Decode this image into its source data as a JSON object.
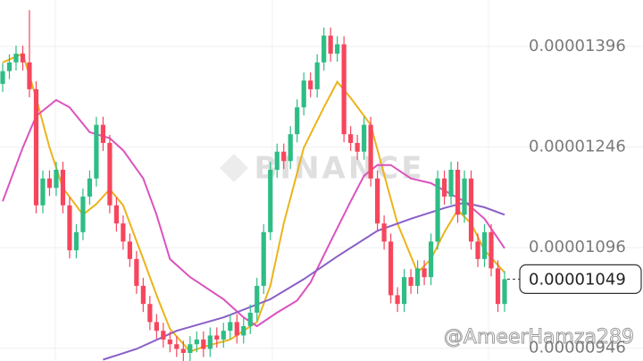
{
  "chart_data": {
    "type": "candlestick",
    "watermark": "BINANCE",
    "credit": "@AmeerHamza289",
    "up_color": "#2ebd85",
    "down_color": "#f6465d",
    "open": [
      1.34e-05,
      1.359e-05,
      1.372e-05,
      1.385e-05,
      1.372e-05,
      1.332e-05,
      1.159e-05,
      1.199e-05,
      1.185e-05,
      1.212e-05,
      1.159e-05,
      1.092e-05,
      1.119e-05,
      1.172e-05,
      1.199e-05,
      1.279e-05,
      1.252e-05,
      1.159e-05,
      1.132e-05,
      1.105e-05,
      1.079e-05,
      1.039e-05,
      1.012e-05,
      9.85e-06,
      9.72e-06,
      9.59e-06,
      9.52e-06,
      9.45e-06,
      9.39e-06,
      9.52e-06,
      9.59e-06,
      9.45e-06,
      9.65e-06,
      9.59e-06,
      9.72e-06,
      9.85e-06,
      9.65e-06,
      9.79e-06,
      9.99e-06,
      1.039e-05,
      1.119e-05,
      1.212e-05,
      1.239e-05,
      1.225e-05,
      1.265e-05,
      1.305e-05,
      1.345e-05,
      1.332e-05,
      1.372e-05,
      1.412e-05,
      1.385e-05,
      1.399e-05,
      1.265e-05,
      1.252e-05,
      1.239e-05,
      1.279e-05,
      1.199e-05,
      1.132e-05,
      1.105e-05,
      1.025e-05,
      1.012e-05,
      1.052e-05,
      1.039e-05,
      1.065e-05,
      1.052e-05,
      1.105e-05,
      1.199e-05,
      1.172e-05,
      1.212e-05,
      1.145e-05,
      1.199e-05,
      1.105e-05,
      1.079e-05,
      1.119e-05,
      1.065e-05,
      1.012e-05
    ],
    "high": [
      1.371e-05,
      1.384e-05,
      1.397e-05,
      1.397e-05,
      1.45e-05,
      1.344e-05,
      1.211e-05,
      1.211e-05,
      1.224e-05,
      1.224e-05,
      1.171e-05,
      1.131e-05,
      1.184e-05,
      1.211e-05,
      1.291e-05,
      1.291e-05,
      1.264e-05,
      1.171e-05,
      1.144e-05,
      1.117e-05,
      1.091e-05,
      1.051e-05,
      1.024e-05,
      9.97e-06,
      9.84e-06,
      9.71e-06,
      9.64e-06,
      9.57e-06,
      9.64e-06,
      9.71e-06,
      9.71e-06,
      9.77e-06,
      9.77e-06,
      9.84e-06,
      9.97e-06,
      9.97e-06,
      9.91e-06,
      1.011e-05,
      1.051e-05,
      1.131e-05,
      1.224e-05,
      1.251e-05,
      1.251e-05,
      1.277e-05,
      1.317e-05,
      1.357e-05,
      1.357e-05,
      1.384e-05,
      1.424e-05,
      1.424e-05,
      1.411e-05,
      1.411e-05,
      1.277e-05,
      1.264e-05,
      1.291e-05,
      1.291e-05,
      1.211e-05,
      1.144e-05,
      1.117e-05,
      1.037e-05,
      1.064e-05,
      1.064e-05,
      1.077e-05,
      1.077e-05,
      1.117e-05,
      1.211e-05,
      1.211e-05,
      1.224e-05,
      1.224e-05,
      1.211e-05,
      1.211e-05,
      1.117e-05,
      1.131e-05,
      1.131e-05,
      1.077e-05,
      1.061e-05
    ],
    "low": [
      1.328e-05,
      1.347e-05,
      1.36e-05,
      1.36e-05,
      1.32e-05,
      1.147e-05,
      1.147e-05,
      1.173e-05,
      1.173e-05,
      1.147e-05,
      1.08e-05,
      1.08e-05,
      1.107e-05,
      1.16e-05,
      1.187e-05,
      1.24e-05,
      1.147e-05,
      1.12e-05,
      1.093e-05,
      1.067e-05,
      1.027e-05,
      1e-05,
      9.73e-06,
      9.6e-06,
      9.47e-06,
      9.4e-06,
      9.33e-06,
      9.27e-06,
      9.27e-06,
      9.4e-06,
      9.33e-06,
      9.33e-06,
      9.47e-06,
      9.47e-06,
      9.6e-06,
      9.53e-06,
      9.53e-06,
      9.67e-06,
      9.87e-06,
      1.027e-05,
      1.107e-05,
      1.2e-05,
      1.213e-05,
      1.213e-05,
      1.253e-05,
      1.293e-05,
      1.32e-05,
      1.32e-05,
      1.36e-05,
      1.373e-05,
      1.373e-05,
      1.253e-05,
      1.24e-05,
      1.227e-05,
      1.227e-05,
      1.187e-05,
      1.12e-05,
      1.093e-05,
      1.013e-05,
      1e-05,
      1e-05,
      1.027e-05,
      1.027e-05,
      1.04e-05,
      1.04e-05,
      1.093e-05,
      1.16e-05,
      1.16e-05,
      1.133e-05,
      1.133e-05,
      1.093e-05,
      1.067e-05,
      1.067e-05,
      1.053e-05,
      1e-05,
      1e-05
    ],
    "close": [
      1.359e-05,
      1.372e-05,
      1.385e-05,
      1.372e-05,
      1.332e-05,
      1.159e-05,
      1.199e-05,
      1.185e-05,
      1.212e-05,
      1.159e-05,
      1.092e-05,
      1.119e-05,
      1.172e-05,
      1.199e-05,
      1.279e-05,
      1.252e-05,
      1.159e-05,
      1.132e-05,
      1.105e-05,
      1.079e-05,
      1.039e-05,
      1.012e-05,
      9.85e-06,
      9.72e-06,
      9.59e-06,
      9.52e-06,
      9.45e-06,
      9.39e-06,
      9.52e-06,
      9.59e-06,
      9.45e-06,
      9.65e-06,
      9.59e-06,
      9.72e-06,
      9.85e-06,
      9.65e-06,
      9.79e-06,
      9.99e-06,
      1.039e-05,
      1.119e-05,
      1.212e-05,
      1.239e-05,
      1.225e-05,
      1.265e-05,
      1.305e-05,
      1.345e-05,
      1.332e-05,
      1.372e-05,
      1.412e-05,
      1.385e-05,
      1.399e-05,
      1.265e-05,
      1.252e-05,
      1.239e-05,
      1.279e-05,
      1.199e-05,
      1.132e-05,
      1.105e-05,
      1.025e-05,
      1.012e-05,
      1.052e-05,
      1.039e-05,
      1.065e-05,
      1.052e-05,
      1.105e-05,
      1.199e-05,
      1.172e-05,
      1.212e-05,
      1.145e-05,
      1.199e-05,
      1.105e-05,
      1.079e-05,
      1.119e-05,
      1.065e-05,
      1.012e-05,
      1.049e-05
    ],
    "lines": [
      {
        "color": "#ebb41a",
        "x": [
          0,
          3,
          5,
          7,
          9,
          12,
          14,
          16,
          18,
          21,
          23,
          25,
          28,
          30,
          34,
          38,
          40,
          42,
          45,
          48,
          50,
          52,
          55,
          57,
          59,
          62,
          64,
          66,
          68,
          70,
          72,
          75
        ],
        "values": [
          1.372e-05,
          1.385e-05,
          1.319e-05,
          1.245e-05,
          1.185e-05,
          1.145e-05,
          1.161e-05,
          1.183e-05,
          1.159e-05,
          1.079e-05,
          1.025e-05,
          9.75e-06,
          9.41e-06,
          9.48e-06,
          9.59e-06,
          9.85e-06,
          1.039e-05,
          1.132e-05,
          1.245e-05,
          1.305e-05,
          1.343e-05,
          1.319e-05,
          1.279e-05,
          1.205e-05,
          1.132e-05,
          1.059e-05,
          1.079e-05,
          1.119e-05,
          1.152e-05,
          1.132e-05,
          1.092e-05,
          1.059e-05
        ]
      },
      {
        "color": "#dc52be",
        "x": [
          0,
          3,
          5,
          8,
          10,
          13,
          16,
          18,
          21,
          23,
          25,
          28,
          30,
          33,
          36,
          38,
          41,
          44,
          46,
          49,
          52,
          54,
          56,
          58,
          61,
          64,
          66,
          69,
          72,
          75
        ],
        "values": [
          1.165e-05,
          1.245e-05,
          1.292e-05,
          1.316e-05,
          1.305e-05,
          1.268e-05,
          1.259e-05,
          1.241e-05,
          1.199e-05,
          1.145e-05,
          1.079e-05,
          1.052e-05,
          1.039e-05,
          1.019e-05,
          9.92e-06,
          9.79e-06,
          9.99e-06,
          1.017e-05,
          1.044e-05,
          1.105e-05,
          1.165e-05,
          1.203e-05,
          1.219e-05,
          1.219e-05,
          1.199e-05,
          1.192e-05,
          1.181e-05,
          1.165e-05,
          1.139e-05,
          1.095e-05
        ]
      },
      {
        "color": "#8a5fc8",
        "x": [
          15,
          20,
          26,
          33,
          40,
          45,
          50,
          56,
          61,
          66,
          69,
          72,
          75
        ],
        "values": [
          9.29e-06,
          9.45e-06,
          9.72e-06,
          9.92e-06,
          1.019e-05,
          1.049e-05,
          1.083e-05,
          1.121e-05,
          1.139e-05,
          1.155e-05,
          1.163e-05,
          1.156e-05,
          1.145e-05
        ]
      }
    ],
    "current_price": 1.049e-05,
    "ylim": [
      9.27e-06,
      1.465e-05
    ],
    "yticks": [
      1.396e-05,
      1.246e-05,
      1.096e-05,
      9.46e-06
    ],
    "grid": true
  }
}
